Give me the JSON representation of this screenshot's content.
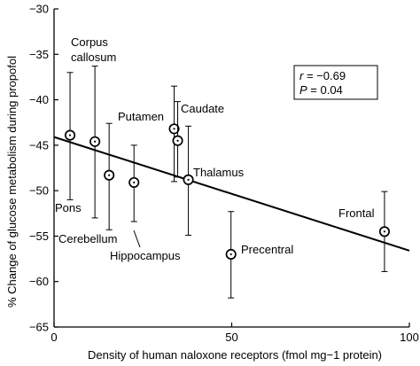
{
  "chart_data": {
    "type": "scatter",
    "xlabel": "Density of human naloxone receptors (fmol mg−1 protein)",
    "ylabel": "% Change of glucose metabolism during propofol",
    "xlim": [
      0,
      100
    ],
    "ylim": [
      -65,
      -30
    ],
    "xticks": [
      "0",
      "50",
      "100"
    ],
    "yticks": [
      "−30",
      "−35",
      "−40",
      "−45",
      "−50",
      "−55",
      "−60",
      "−65"
    ],
    "grid": false,
    "points": [
      {
        "x": 4.5,
        "y": -43.9,
        "err_low": -51.0,
        "err_high": -37.0,
        "label": "Pons"
      },
      {
        "x": 11.5,
        "y": -44.6,
        "err_low": -53.0,
        "err_high": -36.3,
        "label": "Corpus callosum"
      },
      {
        "x": 15.5,
        "y": -48.3,
        "err_low": -54.3,
        "err_high": -42.6,
        "label": "Cerebellum"
      },
      {
        "x": 22.5,
        "y": -49.1,
        "err_low": -53.4,
        "err_high": -45.0,
        "label": "Hippocampus"
      },
      {
        "x": 33.8,
        "y": -43.2,
        "err_low": -49.0,
        "err_high": -38.5,
        "label": "Putamen"
      },
      {
        "x": 34.8,
        "y": -44.5,
        "err_low": -48.5,
        "err_high": -40.2,
        "label": "Caudate"
      },
      {
        "x": 37.8,
        "y": -48.8,
        "err_low": -54.9,
        "err_high": -42.9,
        "label": "Thalamus"
      },
      {
        "x": 49.8,
        "y": -57.0,
        "err_low": -61.8,
        "err_high": -52.3,
        "label": "Precentral"
      },
      {
        "x": 93.0,
        "y": -54.5,
        "err_low": -58.9,
        "err_high": -50.1,
        "label": "Frontal"
      }
    ],
    "regression_line": {
      "x": [
        0,
        100
      ],
      "y": [
        -44.1,
        -56.6
      ]
    },
    "annotations": {
      "corpus_line1": "Corpus",
      "corpus_line2": "callosum",
      "putamen": "Putamen",
      "caudate": "Caudate",
      "thalamus": "Thalamus",
      "pons": "Pons",
      "cerebellum": "Cerebellum",
      "hippocampus": "Hippocampus",
      "precentral": "Precentral",
      "frontal": "Frontal"
    },
    "stats": {
      "r_sym": "r",
      "r_val": " = −0.69",
      "p_sym": "P",
      "p_val": " = 0.04"
    }
  }
}
